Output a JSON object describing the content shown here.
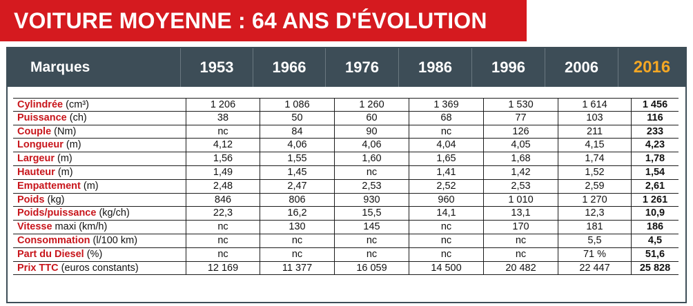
{
  "title": "VOITURE MOYENNE : 64 ANS D'ÉVOLUTION",
  "colors": {
    "banner": "#d51a1f",
    "header_bg": "#3d4d57",
    "highlight_year": "#f4a724",
    "label_red": "#c8151b"
  },
  "table": {
    "columns": [
      "Marques",
      "1953",
      "1966",
      "1976",
      "1986",
      "1996",
      "2006",
      "2016"
    ],
    "rows": [
      {
        "label": "Cylindrée",
        "unit": " (cm³)",
        "values": [
          "1 206",
          "1 086",
          "1 260",
          "1 369",
          "1 530",
          "1 614",
          "1 456"
        ]
      },
      {
        "label": "Puissance",
        "unit": " (ch)",
        "values": [
          "38",
          "50",
          "60",
          "68",
          "77",
          "103",
          "116"
        ]
      },
      {
        "label": "Couple",
        "unit": " (Nm)",
        "values": [
          "nc",
          "84",
          "90",
          "nc",
          "126",
          "211",
          "233"
        ]
      },
      {
        "label": "Longueur",
        "unit": " (m)",
        "values": [
          "4,12",
          "4,06",
          "4,06",
          "4,04",
          "4,05",
          "4,15",
          "4,23"
        ]
      },
      {
        "label": "Largeur",
        "unit": " (m)",
        "values": [
          "1,56",
          "1,55",
          "1,60",
          "1,65",
          "1,68",
          "1,74",
          "1,78"
        ]
      },
      {
        "label": "Hauteur",
        "unit": " (m)",
        "values": [
          "1,49",
          "1,45",
          "nc",
          "1,41",
          "1,42",
          "1,52",
          "1,54"
        ]
      },
      {
        "label": "Empattement",
        "unit": " (m)",
        "values": [
          "2,48",
          "2,47",
          "2,53",
          "2,52",
          "2,53",
          "2,59",
          "2,61"
        ]
      },
      {
        "label": "Poids",
        "unit": " (kg)",
        "values": [
          "846",
          "806",
          "930",
          "960",
          "1 010",
          "1 270",
          "1 261"
        ]
      },
      {
        "label": "Poids/puissance",
        "unit": " (kg/ch)",
        "values": [
          "22,3",
          "16,2",
          "15,5",
          "14,1",
          "13,1",
          "12,3",
          "10,9"
        ]
      },
      {
        "label": "Vitesse",
        "unit": " maxi (km/h)",
        "values": [
          "nc",
          "130",
          "145",
          "nc",
          "170",
          "181",
          "186"
        ]
      },
      {
        "label": "Consommation",
        "unit": " (l/100 km)",
        "values": [
          "nc",
          "nc",
          "nc",
          "nc",
          "nc",
          "5,5",
          "4,5"
        ]
      },
      {
        "label": "Part du Diesel",
        "unit": " (%)",
        "values": [
          "nc",
          "nc",
          "nc",
          "nc",
          "nc",
          "71 %",
          "51,6"
        ]
      },
      {
        "label": "Prix TTC",
        "unit": " (euros constants)",
        "values": [
          "12 169",
          "11 377",
          "16 059",
          "14 500",
          "20 482",
          "22 447",
          "25 828"
        ]
      }
    ]
  }
}
